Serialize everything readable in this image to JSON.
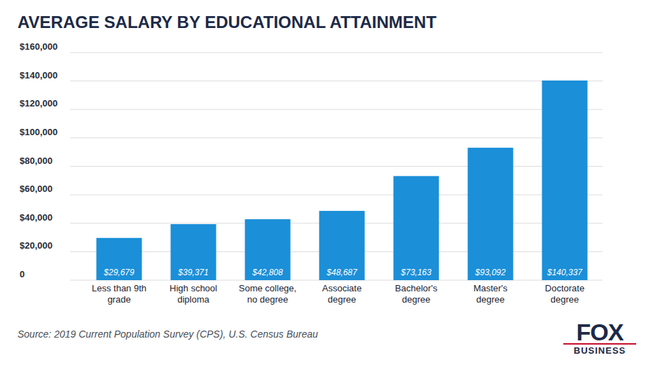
{
  "chart_data": {
    "type": "bar",
    "title": "AVERAGE SALARY BY EDUCATIONAL ATTAINMENT",
    "categories": [
      "Less than 9th grade",
      "High school diploma",
      "Some college, no degree",
      "Associate degree",
      "Bachelor's degree",
      "Master's degree",
      "Doctorate degree"
    ],
    "values": [
      29679,
      39371,
      42808,
      48687,
      73163,
      93092,
      140337
    ],
    "value_labels": [
      "$29,679",
      "$39,371",
      "$42,808",
      "$48,687",
      "$73,163",
      "$93,092",
      "$140,337"
    ],
    "data_labels": true,
    "color": "#1b8fd8",
    "ylim": [
      0,
      160000
    ],
    "yticks": [
      0,
      {
        "value": 20000,
        "label": "$20,000"
      },
      {
        "value": 40000,
        "label": "$40,000"
      },
      {
        "value": 60000,
        "label": "$60,000"
      },
      {
        "value": 80000,
        "label": "$80,000"
      },
      {
        "value": 100000,
        "label": "$100,000"
      },
      {
        "value": 120000,
        "label": "$120,000"
      },
      {
        "value": 140000,
        "label": "$140,000"
      },
      {
        "value": 160000,
        "label": "$160,000"
      }
    ],
    "grid": true,
    "annotations": [
      "Source: 2019 Current Population Survey (CPS), U.S. Census Bureau",
      "FOX",
      "BUSINESS"
    ]
  }
}
